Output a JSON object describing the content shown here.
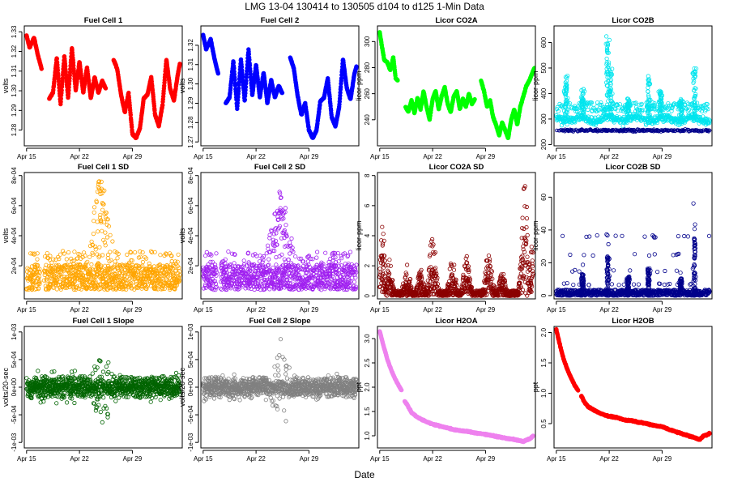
{
  "figure": {
    "title": "LMG   13-04     130414 to 130505     d104 to d125    1-Min Data",
    "xlabel": "Date"
  },
  "x_tick_labels": [
    "Apr 15",
    "Apr 22",
    "Apr 29"
  ],
  "chart_data": [
    {
      "type": "scatter",
      "title": "Fuel Cell 1",
      "ylabel": "volts",
      "color": "#ff0000",
      "filled": true,
      "xlim": [
        104.7,
        125.6
      ],
      "ylim": [
        1.272,
        1.333
      ],
      "yticks": [
        1.28,
        1.29,
        1.3,
        1.31,
        1.32,
        1.33
      ],
      "yticklabels": [
        "1.28",
        "1.29",
        "1.30",
        "1.31",
        "1.32",
        "1.33"
      ],
      "style": "line",
      "x": [
        105,
        105.4,
        106,
        106.5,
        107,
        107.5,
        108,
        108.5,
        109,
        109.5,
        110,
        110.5,
        111,
        111.5,
        112,
        112.5,
        113,
        113.5,
        114,
        114.5,
        115,
        115.5,
        116,
        116.5,
        117,
        117.5,
        118,
        118.5,
        119,
        119.5,
        120,
        120.5,
        121,
        121.5,
        122,
        122.5,
        123,
        123.5,
        124,
        124.5,
        125,
        125.3
      ],
      "y": [
        1.328,
        1.322,
        1.327,
        1.318,
        1.311,
        null,
        1.296,
        1.299,
        1.317,
        1.293,
        1.318,
        1.296,
        1.322,
        1.3,
        1.315,
        1.299,
        1.312,
        1.296,
        1.307,
        1.299,
        1.305,
        1.301,
        null,
        1.316,
        1.311,
        1.298,
        1.289,
        1.299,
        1.278,
        1.276,
        1.281,
        1.296,
        1.298,
        1.307,
        1.288,
        1.282,
        1.293,
        1.316,
        1.301,
        1.295,
        1.308,
        1.314
      ]
    },
    {
      "type": "scatter",
      "title": "Fuel Cell 2",
      "ylabel": "volts",
      "color": "#0000ff",
      "filled": true,
      "xlim": [
        104.7,
        125.6
      ],
      "ylim": [
        1.268,
        1.33
      ],
      "yticks": [
        1.27,
        1.28,
        1.29,
        1.3,
        1.31,
        1.32
      ],
      "yticklabels": [
        "1.27",
        "1.28",
        "1.29",
        "1.30",
        "1.31",
        "1.32"
      ],
      "style": "line",
      "x": [
        105,
        105.4,
        106,
        106.5,
        107,
        107.5,
        108,
        108.5,
        109,
        109.5,
        110,
        110.5,
        111,
        111.5,
        112,
        112.5,
        113,
        113.5,
        114,
        114.5,
        115,
        115.5,
        116,
        116.5,
        117,
        117.5,
        118,
        118.5,
        119,
        119.5,
        120,
        120.5,
        121,
        121.5,
        122,
        122.5,
        123,
        123.5,
        124,
        124.5,
        125,
        125.3
      ],
      "y": [
        1.325,
        1.318,
        1.323,
        1.313,
        1.305,
        null,
        1.29,
        1.293,
        1.312,
        1.287,
        1.313,
        1.291,
        1.318,
        1.294,
        1.31,
        1.293,
        1.306,
        1.29,
        1.302,
        1.293,
        1.299,
        1.295,
        null,
        1.314,
        1.308,
        1.294,
        1.284,
        1.29,
        1.276,
        1.272,
        1.276,
        1.291,
        1.293,
        1.303,
        1.283,
        1.278,
        1.288,
        1.313,
        1.298,
        1.292,
        1.305,
        1.309
      ]
    },
    {
      "type": "scatter",
      "title": "Licor CO2A",
      "ylabel": "licor-ppm",
      "color": "#00ff00",
      "filled": true,
      "xlim": [
        104.7,
        125.6
      ],
      "ylim": [
        220,
        312
      ],
      "yticks": [
        240,
        260,
        280,
        300
      ],
      "yticklabels": [
        "240",
        "260",
        "280",
        "300"
      ],
      "style": "line",
      "x": [
        105,
        105.3,
        105.6,
        106,
        106.4,
        106.8,
        107.1,
        107.4,
        108,
        108.4,
        108.8,
        109.2,
        109.6,
        110,
        110.4,
        110.8,
        111.2,
        111.6,
        112,
        112.4,
        112.8,
        113.2,
        113.6,
        114,
        114.4,
        114.8,
        115.2,
        115.6,
        116,
        116.4,
        116.8,
        117.2,
        117.6,
        118,
        118.4,
        118.8,
        119.2,
        119.6,
        120,
        120.4,
        120.8,
        121.2,
        121.6,
        122,
        122.4,
        122.8,
        123.2,
        123.6,
        124,
        124.4,
        124.8,
        125.2,
        125.5
      ],
      "y": [
        307,
        296,
        286,
        284,
        278,
        288,
        272,
        270,
        null,
        250,
        246,
        255,
        245,
        257,
        248,
        262,
        250,
        240,
        256,
        262,
        248,
        258,
        265,
        252,
        246,
        258,
        262,
        248,
        256,
        250,
        260,
        252,
        256,
        null,
        270,
        262,
        250,
        255,
        242,
        236,
        228,
        238,
        232,
        226,
        240,
        248,
        236,
        250,
        258,
        266,
        270,
        276,
        280
      ]
    },
    {
      "type": "scatter",
      "title": "Licor CO2B",
      "ylabel": "licor-ppm",
      "color": "#00e5ee",
      "filled": false,
      "xlim": [
        104.7,
        125.6
      ],
      "ylim": [
        195,
        665
      ],
      "yticks": [
        200,
        300,
        400,
        500,
        600
      ],
      "yticklabels": [
        "200",
        "300",
        "400",
        "500",
        "600"
      ],
      "style": "cloud",
      "base": 300,
      "spread": 22,
      "spikes": [
        [
          106.3,
          470
        ],
        [
          108.5,
          420
        ],
        [
          111.8,
          640
        ],
        [
          112.2,
          500
        ],
        [
          114.5,
          380
        ],
        [
          117.2,
          470
        ],
        [
          118.8,
          420
        ],
        [
          121.5,
          380
        ],
        [
          123.3,
          500
        ]
      ],
      "lower_band": 255,
      "lower_color": "#00008b"
    },
    {
      "type": "scatter",
      "title": "Fuel Cell 1 SD",
      "ylabel": "volts",
      "color": "#ffa500",
      "filled": false,
      "xlim": [
        104.7,
        125.6
      ],
      "ylim": [
        -2e-05,
        0.00082
      ],
      "yticks": [
        0.0002,
        0.0004,
        0.0006,
        0.0008
      ],
      "yticklabels": [
        "2e-04",
        "4e-04",
        "6e-04",
        "8e-04"
      ],
      "style": "band",
      "base": 4e-05,
      "top": 0.0003,
      "hump_center": 114.8,
      "hump_height": 0.00078,
      "hump_width": 1.2
    },
    {
      "type": "scatter",
      "title": "Fuel Cell 2 SD",
      "ylabel": "volts",
      "color": "#a020f0",
      "filled": false,
      "xlim": [
        104.7,
        125.6
      ],
      "ylim": [
        -2e-05,
        0.00082
      ],
      "yticks": [
        0.0002,
        0.0004,
        0.0006,
        0.0008
      ],
      "yticklabels": [
        "2e-04",
        "4e-04",
        "6e-04",
        "8e-04"
      ],
      "style": "band",
      "base": 4e-05,
      "top": 0.0003,
      "hump_center": 115.2,
      "hump_height": 0.0007,
      "hump_width": 1.2
    },
    {
      "type": "scatter",
      "title": "Licor CO2A SD",
      "ylabel": "licor-ppm",
      "color": "#8b0000",
      "filled": false,
      "xlim": [
        104.7,
        125.6
      ],
      "ylim": [
        -0.2,
        8.2
      ],
      "yticks": [
        0,
        2,
        4,
        6,
        8
      ],
      "yticklabels": [
        "0",
        "2",
        "4",
        "6",
        "8"
      ],
      "style": "peaks",
      "peaks": [
        [
          105.3,
          4.8
        ],
        [
          106.2,
          2.5
        ],
        [
          108.6,
          2.2
        ],
        [
          110.4,
          1.8
        ],
        [
          112,
          4.5
        ],
        [
          114.6,
          2.6
        ],
        [
          116.5,
          2.8
        ],
        [
          119.4,
          3.2
        ],
        [
          121.2,
          1.6
        ],
        [
          124.2,
          7.8
        ],
        [
          125.3,
          3.8
        ]
      ]
    },
    {
      "type": "scatter",
      "title": "Licor CO2B SD",
      "ylabel": "licor-ppm",
      "color": "#00008b",
      "filled": false,
      "xlim": [
        104.7,
        125.6
      ],
      "ylim": [
        -2,
        75
      ],
      "yticks": [
        0,
        20,
        40,
        60
      ],
      "yticklabels": [
        "0",
        "20",
        "40",
        "60"
      ],
      "style": "sparse",
      "rows": [
        36,
        25,
        15,
        7
      ],
      "peaks": [
        [
          108.5,
          22
        ],
        [
          111.8,
          40
        ],
        [
          114.5,
          20
        ],
        [
          117.2,
          28
        ],
        [
          121.5,
          18
        ],
        [
          123.3,
          60
        ]
      ]
    },
    {
      "type": "scatter",
      "title": "Fuel Cell 1 Slope",
      "ylabel": "volts/20-sec",
      "color": "#006400",
      "filled": false,
      "xlim": [
        104.7,
        125.6
      ],
      "ylim": [
        -0.0011,
        0.0011
      ],
      "yticks": [
        -0.001,
        -0.0005,
        0,
        0.0005,
        0.001
      ],
      "yticklabels": [
        "-1e-03",
        "-5e-04",
        "0e+00",
        "5e-04",
        "1e-03"
      ],
      "style": "symmetric",
      "core": 0.00018,
      "outer": 0.0006,
      "hump_center": 115,
      "hump_height": 0.001
    },
    {
      "type": "scatter",
      "title": "Fuel Cell 2 Slope",
      "ylabel": "volts/20-sec",
      "color": "#808080",
      "filled": false,
      "xlim": [
        104.7,
        125.6
      ],
      "ylim": [
        -0.0011,
        0.0011
      ],
      "yticks": [
        -0.001,
        -0.0005,
        0,
        0.0005,
        0.001
      ],
      "yticklabels": [
        "-1e-03",
        "-5e-04",
        "0e+00",
        "5e-04",
        "1e-03"
      ],
      "style": "symmetric",
      "core": 0.00018,
      "outer": 0.00055,
      "hump_center": 115.2,
      "hump_height": 0.0009
    },
    {
      "type": "scatter",
      "title": "Licor H2OA",
      "ylabel": "ppt",
      "color": "#ee82ee",
      "filled": true,
      "xlim": [
        104.7,
        125.6
      ],
      "ylim": [
        0.75,
        3.25
      ],
      "yticks": [
        1.0,
        1.5,
        2.0,
        2.5,
        3.0
      ],
      "yticklabels": [
        "1.0",
        "1.5",
        "2.0",
        "2.5",
        "3.0"
      ],
      "style": "line",
      "x": [
        105,
        105.5,
        106,
        106.5,
        107,
        107.5,
        107.9,
        null,
        108.3,
        108.7,
        109.2,
        110,
        111,
        112,
        113,
        114,
        115,
        116,
        117,
        118,
        119,
        120,
        121,
        122,
        123,
        124,
        124.5,
        125,
        125.3
      ],
      "y": [
        3.15,
        2.85,
        2.58,
        2.36,
        2.18,
        2.04,
        1.93,
        null,
        1.72,
        1.62,
        1.48,
        1.38,
        1.3,
        1.24,
        1.2,
        1.16,
        1.12,
        1.1,
        1.08,
        1.05,
        1.03,
        1.0,
        0.97,
        0.94,
        0.92,
        0.88,
        0.92,
        0.95,
        1.0
      ]
    },
    {
      "type": "scatter",
      "title": "Licor H2OB",
      "ylabel": "ppt",
      "color": "#ff0000",
      "filled": true,
      "xlim": [
        104.7,
        125.6
      ],
      "ylim": [
        0.1,
        2.1
      ],
      "yticks": [
        0.5,
        1.0,
        1.5,
        2.0
      ],
      "yticklabels": [
        "0.5",
        "1.0",
        "1.5",
        "2.0"
      ],
      "style": "line",
      "x": [
        105,
        105.5,
        106,
        106.5,
        107,
        107.5,
        107.9,
        null,
        108.3,
        108.7,
        109.2,
        110,
        111,
        112,
        113,
        114,
        115,
        116,
        117,
        118,
        119,
        120,
        121,
        122,
        123,
        124,
        124.5,
        125,
        125.3
      ],
      "y": [
        2.05,
        1.78,
        1.55,
        1.38,
        1.24,
        1.12,
        1.04,
        null,
        0.96,
        0.86,
        0.78,
        0.72,
        0.66,
        0.62,
        0.6,
        0.56,
        0.55,
        0.52,
        0.5,
        0.47,
        0.45,
        0.4,
        0.36,
        0.32,
        0.28,
        0.24,
        0.3,
        0.32,
        0.34
      ]
    }
  ]
}
